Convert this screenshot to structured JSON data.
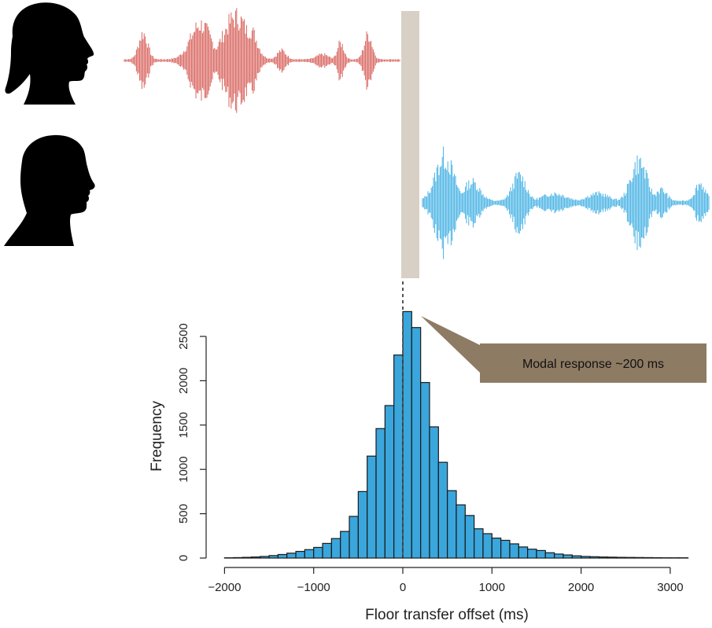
{
  "colors": {
    "speaker_a_wave": "#d9655f",
    "speaker_b_wave": "#47b2e4",
    "bar_fill": "#3aa6dc",
    "bar_stroke": "#1a1a1a",
    "gap_marker": "#d8d0c4",
    "callout_fill": "#8e7b64",
    "silhouette": "#000000"
  },
  "icons": {
    "speaker_a": "woman-head-silhouette-icon",
    "speaker_b": "man-head-silhouette-icon"
  },
  "chart_data": {
    "type": "bar",
    "xlabel": "Floor transfer offset (ms)",
    "ylabel": "Frequency",
    "xlim": [
      -2000,
      3200
    ],
    "ylim": [
      0,
      2500
    ],
    "x_ticks": [
      -2000,
      -1000,
      0,
      1000,
      2000,
      3000
    ],
    "x_tick_labels": [
      "−2000",
      "−1000",
      "0",
      "1000",
      "2000",
      "3000"
    ],
    "y_ticks": [
      0,
      500,
      1000,
      1500,
      2000,
      2500
    ],
    "y_tick_labels": [
      "0",
      "500",
      "1000",
      "1500",
      "2000",
      "2500"
    ],
    "bin_width_ms": 100,
    "bin_starts": [
      -2000,
      -1900,
      -1800,
      -1700,
      -1600,
      -1500,
      -1400,
      -1300,
      -1200,
      -1100,
      -1000,
      -900,
      -800,
      -700,
      -600,
      -500,
      -400,
      -300,
      -200,
      -100,
      0,
      100,
      200,
      300,
      400,
      500,
      600,
      700,
      800,
      900,
      1000,
      1100,
      1200,
      1300,
      1400,
      1500,
      1600,
      1700,
      1800,
      1900,
      2000,
      2100,
      2200,
      2300,
      2400,
      2500,
      2600,
      2700,
      2800,
      2900,
      3000,
      3100
    ],
    "values": [
      3,
      5,
      8,
      12,
      18,
      28,
      40,
      55,
      75,
      95,
      120,
      165,
      220,
      300,
      470,
      750,
      1150,
      1460,
      1720,
      2290,
      2780,
      2600,
      1980,
      1480,
      1080,
      760,
      600,
      480,
      330,
      275,
      225,
      200,
      160,
      125,
      100,
      85,
      60,
      45,
      35,
      25,
      18,
      15,
      12,
      10,
      8,
      7,
      6,
      5,
      4,
      3,
      3,
      3
    ],
    "reference_line_x": 0,
    "annotation": {
      "text": "Modal response ~200 ms",
      "points_to_x": 200
    }
  }
}
